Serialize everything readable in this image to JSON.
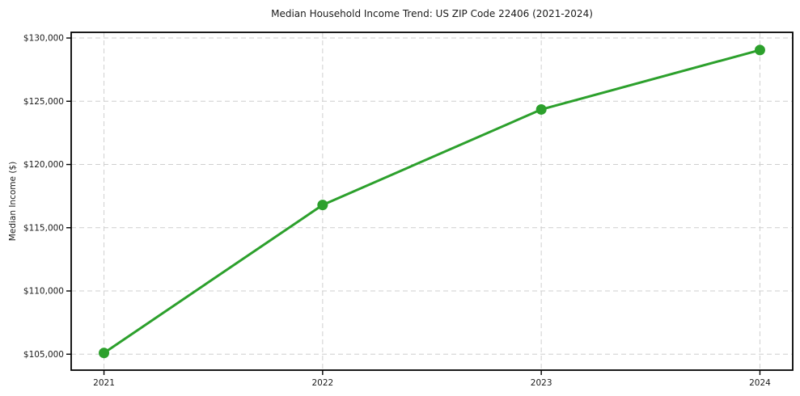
{
  "figure": {
    "background": "#ffffff"
  },
  "chart_data": {
    "type": "line",
    "title": "Median Household Income Trend: US ZIP Code 22406 (2021-2024)",
    "xlabel": "",
    "ylabel": "Median Income ($)",
    "x": [
      2021,
      2022,
      2023,
      2024
    ],
    "series": [
      {
        "values": [
          105100,
          116800,
          124350,
          129050
        ],
        "color": "#2ca02c",
        "marker": "circle"
      }
    ],
    "xticks": [
      2021,
      2022,
      2023,
      2024
    ],
    "xtick_labels": [
      "2021",
      "2022",
      "2023",
      "2024"
    ],
    "yticks": [
      105000,
      110000,
      115000,
      120000,
      125000,
      130000
    ],
    "ytick_labels": [
      "$105,000",
      "$110,000",
      "$115,000",
      "$120,000",
      "$125,000",
      "$130,000"
    ],
    "xlim": [
      2020.85,
      2024.15
    ],
    "ylim": [
      103740,
      130450
    ],
    "grid": "dashed",
    "grid_color": "#cfcfcf",
    "axis_color": "#000000",
    "line_width": 3,
    "marker_radius": 6.5,
    "legend": "none"
  }
}
